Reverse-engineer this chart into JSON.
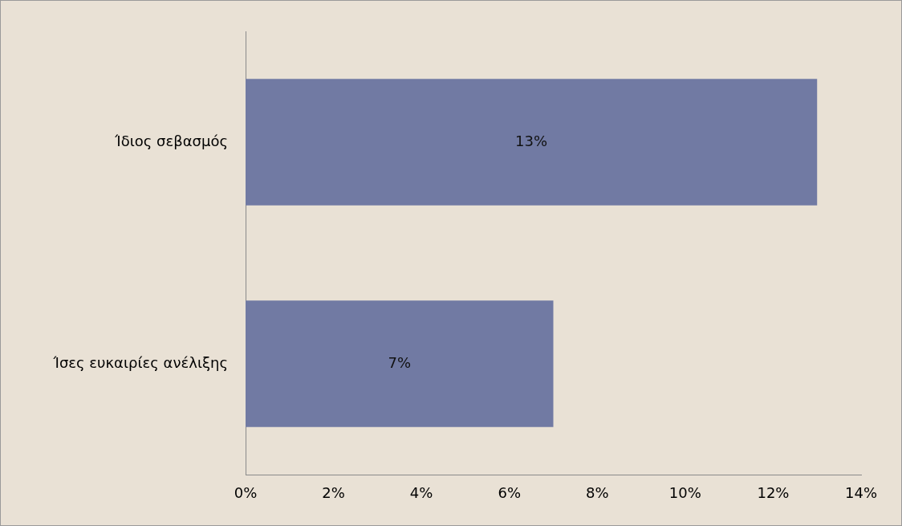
{
  "chart_data": {
    "type": "bar",
    "orientation": "horizontal",
    "categories": [
      "Ίδιος σεβασμός",
      "Ίσες ευκαιρίες ανέλιξης"
    ],
    "values": [
      13,
      7
    ],
    "value_labels": [
      "13%",
      "7%"
    ],
    "color": "#717aa3",
    "xlim": [
      0,
      14
    ],
    "xticks": [
      {
        "value": 0,
        "label": "0%"
      },
      {
        "value": 2,
        "label": "2%"
      },
      {
        "value": 4,
        "label": "4%"
      },
      {
        "value": 6,
        "label": "6%"
      },
      {
        "value": 8,
        "label": "8%"
      },
      {
        "value": 10,
        "label": "10%"
      },
      {
        "value": 12,
        "label": "12%"
      },
      {
        "value": 14,
        "label": "14%"
      }
    ],
    "grid": false,
    "legend": false
  }
}
